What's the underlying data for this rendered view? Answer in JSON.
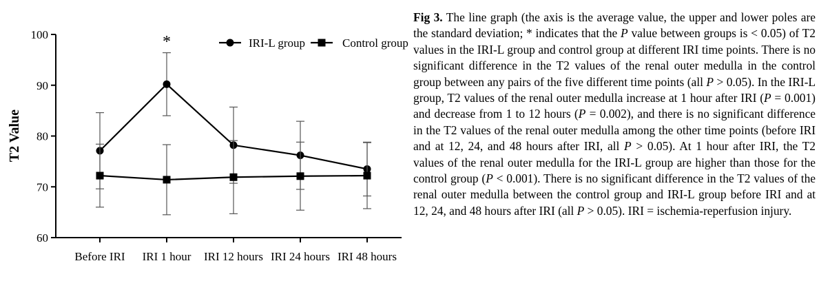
{
  "chart_data": {
    "type": "line",
    "title": "",
    "xlabel": "",
    "ylabel": "T2 Value",
    "ylim": [
      60,
      100
    ],
    "yticks": [
      60,
      70,
      80,
      90,
      100
    ],
    "categories": [
      "Before IRI",
      "IRI 1 hour",
      "IRI 12 hours",
      "IRI 24 hours",
      "IRI 48 hours"
    ],
    "grid": false,
    "legend_position": "top-right",
    "series": [
      {
        "name": "IRI-L group",
        "marker": "circle",
        "color": "#000000",
        "values": [
          77.1,
          90.2,
          78.2,
          76.2,
          73.5
        ],
        "sd": [
          7.5,
          6.2,
          7.5,
          6.7,
          5.3
        ]
      },
      {
        "name": "Control group",
        "marker": "square",
        "color": "#000000",
        "values": [
          72.2,
          71.4,
          71.9,
          72.1,
          72.2
        ],
        "sd": [
          6.2,
          6.9,
          7.2,
          6.7,
          6.5
        ]
      }
    ],
    "annotations": [
      {
        "text": "*",
        "category": "IRI 1 hour"
      }
    ]
  },
  "caption": {
    "fig_label": "Fig 3.",
    "parts": [
      {
        "t": " The line graph (the axis is the average value, the upper and lower poles are the standard deviation; * indicates that the ",
        "i": false
      },
      {
        "t": "P",
        "i": true
      },
      {
        "t": " value between groups is < 0.05) of T2 values in the IRI-L group and control group at different IRI time points. There is no significant difference in the T2 values of the renal outer medulla in the control group between any pairs of the five different time points (all ",
        "i": false
      },
      {
        "t": "P",
        "i": true
      },
      {
        "t": " > 0.05). In the IRI-L group, T2 values of the renal outer medulla increase at 1 hour after IRI (",
        "i": false
      },
      {
        "t": "P",
        "i": true
      },
      {
        "t": " = 0.001) and decrease from 1 to 12 hours (",
        "i": false
      },
      {
        "t": "P",
        "i": true
      },
      {
        "t": " = 0.002), and there is no significant difference in the T2 values of the renal outer medulla among the other time points (before IRI and at 12, 24, and 48 hours after IRI, all ",
        "i": false
      },
      {
        "t": "P",
        "i": true
      },
      {
        "t": " > 0.05). At 1 hour after IRI, the T2 values of the renal outer medulla for the IRI-L group are higher than those for the control group (",
        "i": false
      },
      {
        "t": "P",
        "i": true
      },
      {
        "t": " < 0.001). There is no significant difference in the T2 values of the renal outer medulla between the control group and IRI-L group before IRI and at 12, 24, and 48 hours after IRI (all ",
        "i": false
      },
      {
        "t": "P",
        "i": true
      },
      {
        "t": " > 0.05). IRI = ischemia-reperfusion injury.",
        "i": false
      }
    ]
  }
}
